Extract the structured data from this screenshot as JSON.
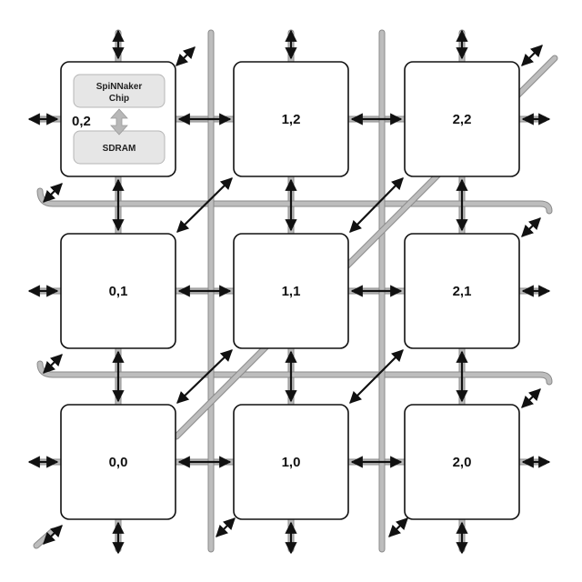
{
  "diagram": {
    "chips": [
      {
        "id": "0,2",
        "col": 0,
        "row": 0,
        "detailed": true
      },
      {
        "id": "1,2",
        "col": 1,
        "row": 0
      },
      {
        "id": "2,2",
        "col": 2,
        "row": 0
      },
      {
        "id": "0,1",
        "col": 0,
        "row": 1
      },
      {
        "id": "1,1",
        "col": 1,
        "row": 1
      },
      {
        "id": "2,1",
        "col": 2,
        "row": 1
      },
      {
        "id": "0,0",
        "col": 0,
        "row": 2
      },
      {
        "id": "1,0",
        "col": 1,
        "row": 2
      },
      {
        "id": "2,0",
        "col": 2,
        "row": 2
      }
    ],
    "detail": {
      "processor_label_line1": "SpiNNaker",
      "processor_label_line2": "Chip",
      "memory_label": "SDRAM"
    },
    "colors": {
      "wire": "#bdbdbd",
      "link": "#111111",
      "inner_box": "#e6e6e6",
      "memory_arrow": "#b8b8b8"
    }
  }
}
